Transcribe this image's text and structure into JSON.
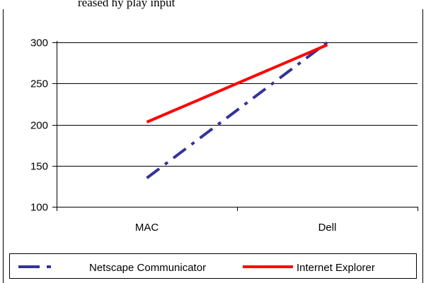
{
  "caption_fragment": "reased hy play input",
  "chart_data": {
    "type": "line",
    "title": "",
    "xlabel": "",
    "ylabel": "",
    "categories": [
      "MAC",
      "Dell"
    ],
    "ylim": [
      100,
      300
    ],
    "yticks": [
      "100",
      "150",
      "200",
      "250",
      "300"
    ],
    "grid": true,
    "legend_position": "bottom",
    "series": [
      {
        "name": "Netscape Communicator",
        "values": [
          135,
          300
        ],
        "color": "#333399",
        "style": "dash-dot"
      },
      {
        "name": "Internet Explorer",
        "values": [
          203,
          297
        ],
        "color": "#ff0000",
        "style": "solid"
      }
    ]
  }
}
